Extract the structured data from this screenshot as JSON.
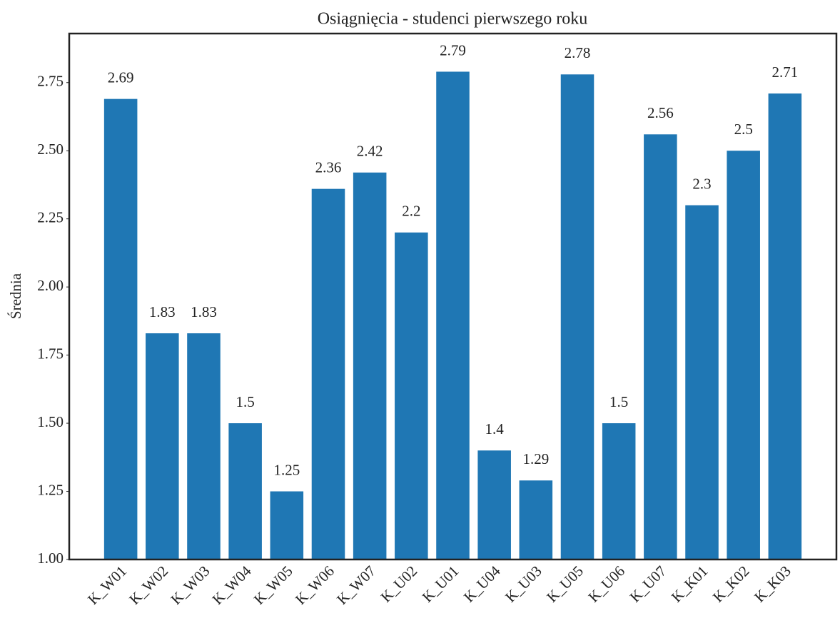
{
  "chart_data": {
    "type": "bar",
    "title": "Osiągnięcia - studenci pierwszego roku",
    "y_label": "Średnia",
    "categories": [
      "K_W01",
      "K_W02",
      "K_W03",
      "K_W04",
      "K_W05",
      "K_W06",
      "K_W07",
      "K_U02",
      "K_U01",
      "K_U04",
      "K_U03",
      "K_U05",
      "K_U06",
      "K_U07",
      "K_K01",
      "K_K02",
      "K_K03"
    ],
    "values": [
      2.69,
      1.83,
      1.83,
      1.5,
      1.25,
      2.36,
      2.42,
      2.2,
      2.79,
      1.4,
      1.29,
      2.78,
      1.5,
      2.56,
      2.3,
      2.5,
      2.71
    ],
    "color": "#1f77b4",
    "ylim": [
      1,
      2.93
    ],
    "yticks": [
      {
        "value": 1,
        "label": "1.00"
      },
      1.25,
      {
        "value": 1.5,
        "label": "1.50"
      },
      1.75,
      {
        "value": 2,
        "label": "2.00"
      },
      2.25,
      {
        "value": 2.5,
        "label": "2.50"
      },
      2.75
    ],
    "grid": false
  }
}
